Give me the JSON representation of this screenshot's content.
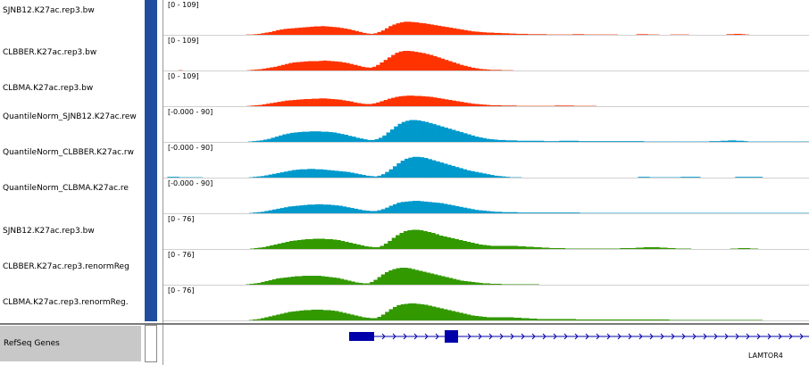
{
  "tracks": [
    {
      "name": "SJNB12.K27ac.rep3.bw",
      "range": "[0 - 109]",
      "color": "#ff3300",
      "max": 109,
      "values": [
        0,
        0,
        0,
        0,
        0,
        0,
        0,
        0,
        0,
        0,
        0,
        0,
        0,
        0,
        0,
        0,
        0,
        0,
        0,
        0,
        0,
        0,
        1,
        1,
        2,
        3,
        5,
        7,
        9,
        12,
        15,
        17,
        19,
        20,
        21,
        22,
        23,
        24,
        25,
        26,
        27,
        27,
        28,
        27,
        26,
        25,
        24,
        22,
        20,
        18,
        15,
        12,
        9,
        6,
        4,
        3,
        5,
        9,
        14,
        21,
        28,
        33,
        37,
        40,
        42,
        42,
        41,
        40,
        38,
        37,
        35,
        33,
        31,
        29,
        27,
        25,
        23,
        21,
        19,
        17,
        15,
        13,
        11,
        10,
        9,
        8,
        7,
        7,
        6,
        6,
        5,
        5,
        4,
        4,
        3,
        3,
        3,
        2,
        2,
        2,
        2,
        2,
        1,
        1,
        1,
        1,
        1,
        1,
        1,
        2,
        2,
        2,
        1,
        1,
        1,
        1,
        1,
        1,
        1,
        1,
        1,
        0,
        0,
        0,
        0,
        0,
        2,
        2,
        2,
        1,
        1,
        1,
        0,
        0,
        0,
        1,
        1,
        1,
        1,
        1,
        0,
        0,
        0,
        0,
        0,
        0,
        0,
        0,
        0,
        0,
        2,
        2,
        3,
        3,
        2,
        1,
        0,
        0,
        0,
        0,
        0,
        0,
        0,
        0,
        0,
        0,
        0,
        0,
        0,
        0,
        0,
        0
      ]
    },
    {
      "name": "CLBBER.K27ac.rep3.bw",
      "range": "[0 - 109]",
      "color": "#ff3300",
      "max": 109,
      "values": [
        0,
        0,
        0,
        0,
        1,
        0,
        0,
        0,
        0,
        0,
        0,
        0,
        0,
        0,
        0,
        0,
        0,
        0,
        0,
        0,
        0,
        0,
        1,
        2,
        3,
        4,
        6,
        8,
        10,
        12,
        15,
        18,
        21,
        24,
        26,
        27,
        28,
        29,
        30,
        30,
        30,
        31,
        32,
        31,
        30,
        29,
        28,
        26,
        24,
        21,
        18,
        15,
        12,
        10,
        9,
        12,
        18,
        26,
        34,
        42,
        50,
        57,
        61,
        63,
        63,
        62,
        60,
        58,
        56,
        53,
        50,
        46,
        42,
        38,
        34,
        30,
        26,
        22,
        18,
        15,
        12,
        9,
        7,
        5,
        4,
        3,
        2,
        2,
        2,
        1,
        1,
        1,
        0,
        0,
        0,
        0,
        0,
        0,
        0,
        0,
        0,
        0,
        0,
        0,
        0,
        0,
        0,
        0,
        0,
        0,
        0,
        0,
        0,
        0,
        0,
        0,
        0,
        0,
        0,
        0,
        0,
        0,
        0,
        0,
        0,
        0,
        0,
        0,
        0,
        0,
        0,
        0,
        0,
        0,
        0,
        0,
        0,
        0,
        0,
        0,
        0,
        0,
        0,
        0,
        0,
        0,
        0,
        0,
        0,
        0,
        0,
        0,
        0,
        0,
        0,
        0,
        0,
        0,
        0,
        0,
        0,
        0,
        0,
        0,
        0,
        0,
        0,
        0,
        0,
        0
      ]
    },
    {
      "name": "CLBMA.K27ac.rep3.bw",
      "range": "[0 - 109]",
      "color": "#ff3300",
      "max": 109,
      "values": [
        0,
        0,
        0,
        0,
        0,
        0,
        0,
        0,
        0,
        0,
        0,
        0,
        0,
        0,
        0,
        0,
        0,
        0,
        0,
        0,
        0,
        0,
        1,
        2,
        3,
        4,
        6,
        8,
        10,
        12,
        14,
        16,
        18,
        19,
        20,
        21,
        22,
        23,
        23,
        24,
        24,
        25,
        25,
        24,
        23,
        22,
        21,
        19,
        17,
        15,
        12,
        10,
        8,
        7,
        7,
        9,
        12,
        16,
        20,
        24,
        27,
        30,
        32,
        33,
        34,
        34,
        33,
        33,
        32,
        31,
        30,
        28,
        26,
        24,
        22,
        20,
        18,
        16,
        14,
        12,
        10,
        8,
        7,
        6,
        5,
        4,
        3,
        3,
        3,
        2,
        2,
        2,
        2,
        1,
        1,
        1,
        1,
        1,
        1,
        1,
        1,
        1,
        1,
        2,
        2,
        2,
        2,
        2,
        1,
        1,
        1,
        1,
        1,
        1,
        0,
        0,
        0,
        0,
        0,
        0,
        0,
        0,
        0,
        0,
        0,
        0,
        0,
        0,
        0,
        0,
        0,
        0,
        0,
        0,
        0,
        0,
        0,
        0,
        0,
        0,
        0,
        0,
        0,
        0,
        0,
        0,
        0,
        0,
        0,
        0,
        0,
        0,
        0,
        0,
        0,
        0,
        0,
        0,
        0,
        0,
        0,
        0,
        0,
        0,
        0,
        0,
        0,
        0,
        0,
        0
      ]
    },
    {
      "name": "QuantileNorm_SJNB12.K27ac.rew",
      "range": "[-0.000 - 90]",
      "color": "#0099cc",
      "max": 90,
      "values": [
        0,
        0,
        0,
        0,
        0,
        0,
        0,
        0,
        0,
        0,
        0,
        0,
        0,
        0,
        0,
        0,
        0,
        0,
        0,
        0,
        0,
        0,
        1,
        2,
        3,
        4,
        6,
        8,
        11,
        14,
        17,
        20,
        22,
        24,
        25,
        26,
        27,
        27,
        28,
        28,
        28,
        27,
        27,
        26,
        25,
        23,
        21,
        19,
        16,
        14,
        11,
        9,
        7,
        5,
        5,
        7,
        11,
        17,
        25,
        33,
        41,
        48,
        53,
        56,
        58,
        58,
        57,
        55,
        53,
        50,
        47,
        44,
        41,
        38,
        35,
        32,
        29,
        26,
        23,
        20,
        17,
        14,
        12,
        10,
        8,
        7,
        6,
        5,
        5,
        4,
        4,
        4,
        3,
        3,
        3,
        3,
        3,
        3,
        3,
        2,
        2,
        2,
        2,
        3,
        3,
        3,
        3,
        3,
        2,
        2,
        2,
        2,
        2,
        2,
        2,
        2,
        2,
        2,
        2,
        2,
        2,
        2,
        2,
        2,
        2,
        1,
        1,
        1,
        1,
        1,
        1,
        1,
        1,
        1,
        1,
        1,
        1,
        1,
        1,
        1,
        1,
        1,
        2,
        2,
        2,
        3,
        3,
        4,
        4,
        3,
        3,
        2,
        1,
        1,
        1,
        1,
        1,
        1,
        1,
        1,
        1,
        1,
        1,
        1,
        1,
        1,
        1,
        1
      ]
    },
    {
      "name": "QuantileNorm_CLBBER.K27ac.rw",
      "range": "[-0.000 - 90]",
      "color": "#0099cc",
      "max": 90,
      "values": [
        0,
        2,
        2,
        2,
        1,
        1,
        1,
        1,
        1,
        1,
        0,
        0,
        0,
        0,
        0,
        0,
        0,
        0,
        0,
        0,
        0,
        0,
        1,
        2,
        3,
        4,
        6,
        8,
        10,
        12,
        14,
        16,
        18,
        20,
        21,
        22,
        22,
        23,
        23,
        22,
        22,
        21,
        20,
        19,
        18,
        17,
        16,
        15,
        13,
        11,
        9,
        7,
        5,
        4,
        3,
        5,
        9,
        15,
        22,
        30,
        38,
        45,
        50,
        53,
        55,
        55,
        54,
        52,
        49,
        46,
        43,
        40,
        37,
        34,
        31,
        28,
        25,
        22,
        19,
        17,
        15,
        13,
        11,
        9,
        7,
        5,
        4,
        3,
        2,
        1,
        1,
        1,
        0,
        0,
        0,
        0,
        0,
        0,
        0,
        0,
        0,
        0,
        0,
        0,
        0,
        0,
        0,
        0,
        0,
        0,
        0,
        0,
        0,
        0,
        0,
        0,
        0,
        0,
        0,
        0,
        0,
        0,
        2,
        2,
        2,
        1,
        1,
        1,
        1,
        1,
        1,
        1,
        1,
        2,
        2,
        2,
        2,
        2,
        0,
        0,
        0,
        0,
        0,
        0,
        0,
        0,
        0,
        2,
        2,
        2,
        2,
        2,
        2,
        2,
        0,
        0,
        0,
        0,
        0,
        0,
        0,
        0,
        0,
        0,
        0,
        0
      ]
    },
    {
      "name": "QuantileNorm_CLBMA.K27ac.re",
      "range": "[-0.000 - 90]",
      "color": "#0099cc",
      "max": 90,
      "values": [
        0,
        0,
        0,
        0,
        0,
        0,
        0,
        0,
        0,
        0,
        0,
        0,
        0,
        0,
        0,
        0,
        0,
        0,
        0,
        0,
        0,
        0,
        1,
        2,
        3,
        4,
        6,
        8,
        10,
        12,
        14,
        16,
        18,
        19,
        20,
        21,
        22,
        23,
        23,
        24,
        24,
        23,
        23,
        22,
        21,
        20,
        18,
        16,
        14,
        12,
        10,
        8,
        7,
        6,
        6,
        8,
        11,
        15,
        20,
        24,
        28,
        30,
        31,
        32,
        33,
        33,
        32,
        31,
        30,
        29,
        28,
        27,
        25,
        23,
        21,
        19,
        17,
        15,
        13,
        11,
        9,
        8,
        7,
        6,
        5,
        4,
        4,
        3,
        3,
        3,
        3,
        2,
        2,
        2,
        2,
        2,
        2,
        2,
        2,
        2,
        2,
        2,
        2,
        2,
        2,
        2,
        2,
        1,
        1,
        1,
        1,
        1,
        1,
        1,
        1,
        1,
        1,
        1,
        1,
        1,
        1,
        1,
        1,
        1,
        1,
        1,
        1,
        1,
        1,
        1,
        1,
        1,
        1,
        1,
        1,
        1,
        1,
        1,
        1,
        1,
        1,
        1,
        1,
        1,
        1,
        1,
        1,
        1,
        1,
        1,
        1,
        1,
        1,
        1,
        1,
        1,
        1,
        1,
        1,
        1,
        1,
        1,
        1,
        1,
        1,
        1
      ]
    },
    {
      "name": "SJNB12.K27ac.rep3.bw",
      "range": "[0 - 76]",
      "color": "#339900",
      "max": 76,
      "values": [
        0,
        0,
        0,
        0,
        0,
        0,
        0,
        0,
        0,
        0,
        0,
        0,
        0,
        0,
        0,
        0,
        0,
        0,
        0,
        0,
        0,
        0,
        1,
        2,
        3,
        4,
        6,
        8,
        10,
        12,
        14,
        16,
        18,
        19,
        20,
        21,
        22,
        22,
        23,
        23,
        23,
        22,
        22,
        21,
        20,
        18,
        16,
        14,
        12,
        10,
        8,
        6,
        5,
        4,
        4,
        7,
        12,
        18,
        25,
        31,
        36,
        40,
        42,
        43,
        43,
        42,
        40,
        38,
        36,
        33,
        30,
        28,
        26,
        24,
        22,
        20,
        18,
        16,
        14,
        12,
        10,
        9,
        8,
        7,
        7,
        7,
        7,
        7,
        7,
        7,
        6,
        6,
        5,
        5,
        4,
        4,
        3,
        3,
        2,
        2,
        2,
        2,
        1,
        1,
        1,
        1,
        1,
        1,
        1,
        1,
        1,
        1,
        1,
        1,
        1,
        1,
        2,
        2,
        2,
        2,
        3,
        3,
        4,
        4,
        4,
        4,
        3,
        3,
        2,
        2,
        1,
        1,
        1,
        1,
        0,
        0,
        0,
        0,
        0,
        0,
        0,
        0,
        0,
        0,
        1,
        1,
        2,
        2,
        2,
        1,
        1,
        0,
        0,
        0,
        0,
        0,
        0,
        0,
        0,
        0,
        0,
        0,
        0,
        0
      ]
    },
    {
      "name": "CLBBER.K27ac.rep3.renormReg",
      "range": "[0 - 76]",
      "color": "#339900",
      "max": 76,
      "values": [
        0,
        0,
        0,
        0,
        0,
        0,
        0,
        0,
        0,
        0,
        0,
        0,
        0,
        0,
        0,
        0,
        0,
        0,
        0,
        0,
        0,
        0,
        1,
        2,
        3,
        4,
        6,
        8,
        10,
        12,
        14,
        15,
        16,
        17,
        18,
        19,
        19,
        20,
        20,
        20,
        20,
        20,
        19,
        18,
        17,
        16,
        15,
        13,
        11,
        9,
        7,
        5,
        4,
        3,
        3,
        6,
        11,
        17,
        23,
        28,
        32,
        35,
        37,
        38,
        38,
        37,
        35,
        33,
        31,
        29,
        27,
        25,
        23,
        21,
        19,
        17,
        15,
        13,
        11,
        9,
        8,
        7,
        6,
        5,
        4,
        3,
        3,
        2,
        2,
        2,
        1,
        1,
        1,
        1,
        1,
        1,
        1,
        1,
        1,
        1,
        0,
        0,
        0,
        0,
        0,
        0,
        0,
        0,
        0,
        0,
        0,
        0,
        0,
        0,
        0,
        0,
        0,
        0,
        0,
        0,
        0,
        0,
        0,
        0,
        0,
        0,
        0,
        0,
        0,
        0,
        0,
        0,
        0,
        0,
        0,
        0,
        0,
        0,
        0,
        0,
        0,
        0,
        0,
        0,
        0,
        0,
        0,
        0,
        0,
        0,
        0,
        0,
        0,
        0,
        0,
        0,
        0,
        0,
        0,
        0,
        0,
        0,
        0,
        0,
        0,
        0,
        0,
        0,
        0,
        0,
        0,
        0
      ]
    },
    {
      "name": "CLBMA.K27ac.rep3.renormReg.",
      "range": "[0 - 76]",
      "color": "#339900",
      "max": 76,
      "values": [
        0,
        0,
        0,
        0,
        0,
        0,
        0,
        0,
        0,
        0,
        0,
        0,
        0,
        0,
        0,
        0,
        0,
        0,
        0,
        0,
        0,
        0,
        1,
        2,
        3,
        5,
        7,
        9,
        11,
        13,
        15,
        17,
        19,
        20,
        21,
        22,
        23,
        23,
        24,
        24,
        24,
        23,
        23,
        22,
        21,
        19,
        17,
        15,
        13,
        11,
        9,
        7,
        6,
        5,
        5,
        8,
        13,
        19,
        25,
        30,
        34,
        36,
        37,
        38,
        38,
        37,
        36,
        35,
        33,
        31,
        29,
        27,
        25,
        23,
        21,
        19,
        17,
        15,
        13,
        11,
        10,
        9,
        8,
        7,
        7,
        7,
        7,
        7,
        7,
        7,
        6,
        6,
        5,
        5,
        4,
        4,
        3,
        3,
        3,
        3,
        3,
        3,
        3,
        3,
        3,
        3,
        2,
        2,
        2,
        2,
        2,
        2,
        2,
        2,
        2,
        2,
        2,
        2,
        2,
        2,
        2,
        2,
        2,
        2,
        2,
        2,
        2,
        2,
        2,
        2,
        1,
        1,
        1,
        1,
        1,
        1,
        1,
        1,
        1,
        1,
        1,
        1,
        1,
        1,
        1,
        1,
        1,
        1,
        1,
        1,
        1,
        1,
        1,
        1,
        0,
        0,
        0,
        0,
        0,
        0,
        0,
        0,
        0,
        0,
        0,
        0
      ]
    }
  ],
  "refseq": {
    "label": "RefSeq Genes",
    "gene_name": "LAMTOR4",
    "gene_color": "#0000aa"
  }
}
